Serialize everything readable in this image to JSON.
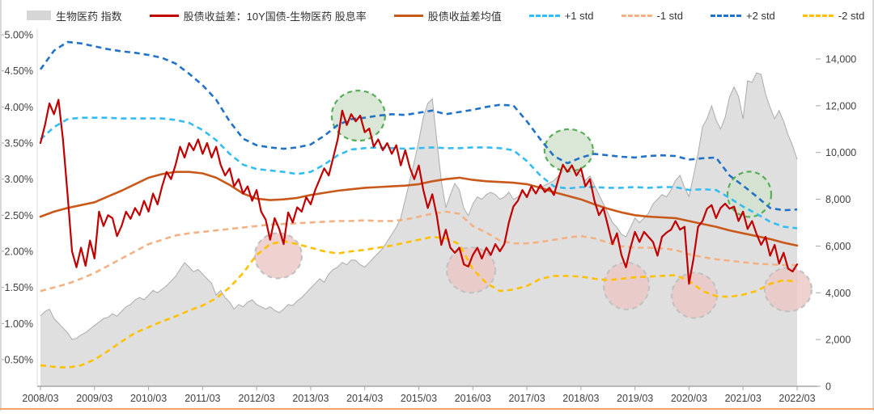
{
  "legend": {
    "items": [
      {
        "id": "index",
        "label": "生物医药 指数",
        "swatch": "area",
        "color": "#d6d6d6"
      },
      {
        "id": "spread",
        "label": "股债收益差：10Y国债-生物医药 股息率",
        "swatch": "line",
        "color": "#c00000"
      },
      {
        "id": "mean",
        "label": "股债收益差均值",
        "swatch": "line",
        "color": "#c9591b"
      },
      {
        "id": "p1std",
        "label": "+1 std",
        "swatch": "dash",
        "color": "#33bdf2"
      },
      {
        "id": "m1std",
        "label": "-1 std",
        "swatch": "dash",
        "color": "#f4b183"
      },
      {
        "id": "p2std",
        "label": "+2 std",
        "swatch": "dash",
        "color": "#2272c8"
      },
      {
        "id": "m2std",
        "label": "-2 std",
        "swatch": "dash",
        "color": "#ffc000"
      }
    ]
  },
  "chart_data": {
    "type": "combo",
    "months": 169,
    "x_start": "2008/03",
    "x_end": "2022/03",
    "x_tick_labels": [
      "2008/03",
      "2009/03",
      "2010/03",
      "2011/03",
      "2012/03",
      "2013/03",
      "2014/03",
      "2015/03",
      "2016/03",
      "2017/03",
      "2018/03",
      "2019/03",
      "2020/03",
      "2021/03",
      "2022/03"
    ],
    "y_left": {
      "tick_labels": [
        "5.00%",
        "4.50%",
        "4.00%",
        "3.50%",
        "3.00%",
        "2.50%",
        "2.00%",
        "1.50%",
        "1.00%",
        "0.50%"
      ],
      "tick_values": [
        5.0,
        4.5,
        4.0,
        3.5,
        3.0,
        2.5,
        2.0,
        1.5,
        1.0,
        0.5
      ],
      "min": 0.5,
      "max": 5.0
    },
    "y_right": {
      "tick_labels": [
        "14,000",
        "12,000",
        "10,000",
        "8,000",
        "6,000",
        "4,000",
        "2,000",
        "0"
      ],
      "tick_values": [
        14000,
        12000,
        10000,
        8000,
        6000,
        4000,
        2000,
        0
      ],
      "min": 0,
      "max": 14000
    },
    "series": [
      {
        "id": "index_area",
        "name": "生物医药 指数",
        "type": "area",
        "axis": "right",
        "step": 1,
        "fill": "#dcdcdc",
        "stroke": "#ababab",
        "values": [
          3000,
          3200,
          3300,
          2900,
          2700,
          2500,
          2300,
          2000,
          2050,
          2200,
          2300,
          2450,
          2600,
          2750,
          2900,
          2950,
          3100,
          3000,
          3200,
          3400,
          3500,
          3700,
          3800,
          3700,
          3900,
          4100,
          4000,
          4150,
          4300,
          4500,
          4700,
          5000,
          5290,
          5100,
          4900,
          5000,
          4800,
          4600,
          4400,
          3900,
          4100,
          3800,
          3600,
          3300,
          3500,
          3400,
          3600,
          3700,
          3500,
          3400,
          3300,
          3400,
          3250,
          3150,
          3300,
          3500,
          3450,
          3650,
          3800,
          4000,
          4200,
          4400,
          4600,
          4450,
          4800,
          5000,
          5100,
          5300,
          5200,
          5400,
          5390,
          5200,
          5100,
          5300,
          5500,
          5700,
          5900,
          6200,
          6500,
          6800,
          7200,
          8000,
          8800,
          9600,
          10500,
          11500,
          12100,
          12300,
          10500,
          8800,
          7640,
          8200,
          8680,
          8400,
          7600,
          7300,
          7800,
          8100,
          8000,
          8200,
          8300,
          8200,
          8000,
          8100,
          8300,
          8000,
          8100,
          8300,
          8200,
          8400,
          8300,
          8500,
          8600,
          8700,
          8800,
          9000,
          9200,
          9400,
          9540,
          9200,
          9000,
          8800,
          9000,
          8600,
          8200,
          7800,
          7400,
          7000,
          6800,
          6500,
          6400,
          6800,
          7200,
          7000,
          7190,
          7400,
          7800,
          8000,
          8200,
          8100,
          8400,
          8800,
          9020,
          8500,
          8120,
          9000,
          9960,
          11100,
          11450,
          12000,
          11400,
          11000,
          11500,
          12380,
          12800,
          12400,
          11440,
          13070,
          13000,
          13410,
          13340,
          12500,
          11930,
          11440,
          11790,
          11340,
          10750,
          10300,
          9700
        ]
      },
      {
        "id": "m2std",
        "name": "-2 std",
        "type": "line",
        "dashed": true,
        "axis": "left",
        "step": 3,
        "color": "#ffc000",
        "values": [
          0.42,
          0.4,
          0.39,
          0.42,
          0.5,
          0.62,
          0.75,
          0.87,
          0.95,
          1.03,
          1.1,
          1.18,
          1.25,
          1.35,
          1.5,
          1.7,
          1.95,
          2.1,
          2.14,
          2.1,
          2.05,
          2.0,
          1.97,
          2.0,
          2.02,
          2.05,
          2.08,
          2.12,
          2.16,
          2.2,
          2.18,
          2.1,
          1.75,
          1.56,
          1.45,
          1.47,
          1.52,
          1.62,
          1.66,
          1.66,
          1.65,
          1.62,
          1.6,
          1.62,
          1.64,
          1.65,
          1.66,
          1.67,
          1.59,
          1.45,
          1.38,
          1.37,
          1.4,
          1.45,
          1.55,
          1.6,
          1.58
        ]
      },
      {
        "id": "m1std",
        "name": "-1 std",
        "type": "line",
        "dashed": true,
        "axis": "left",
        "step": 3,
        "color": "#f4b183",
        "values": [
          1.45,
          1.5,
          1.55,
          1.62,
          1.7,
          1.8,
          1.9,
          2.0,
          2.1,
          2.16,
          2.22,
          2.25,
          2.27,
          2.29,
          2.31,
          2.33,
          2.35,
          2.37,
          2.38,
          2.39,
          2.4,
          2.41,
          2.42,
          2.42,
          2.43,
          2.42,
          2.42,
          2.44,
          2.48,
          2.52,
          2.55,
          2.52,
          2.35,
          2.26,
          2.15,
          2.11,
          2.11,
          2.13,
          2.16,
          2.19,
          2.21,
          2.18,
          2.12,
          2.07,
          2.05,
          2.05,
          2.04,
          2.02,
          1.96,
          1.92,
          1.89,
          1.87,
          1.85,
          1.83,
          1.82,
          1.81,
          1.81
        ]
      },
      {
        "id": "p1std",
        "name": "+1 std",
        "type": "line",
        "dashed": true,
        "axis": "left",
        "step": 3,
        "color": "#33bdf2",
        "values": [
          3.55,
          3.72,
          3.83,
          3.85,
          3.85,
          3.85,
          3.84,
          3.84,
          3.84,
          3.84,
          3.82,
          3.78,
          3.68,
          3.54,
          3.35,
          3.2,
          3.14,
          3.12,
          3.1,
          3.07,
          3.1,
          3.2,
          3.33,
          3.41,
          3.43,
          3.44,
          3.43,
          3.42,
          3.43,
          3.44,
          3.43,
          3.43,
          3.44,
          3.44,
          3.43,
          3.4,
          3.25,
          3.05,
          2.9,
          2.87,
          2.89,
          2.89,
          2.88,
          2.88,
          2.89,
          2.88,
          2.89,
          2.89,
          2.85,
          2.86,
          2.85,
          2.74,
          2.62,
          2.52,
          2.41,
          2.34,
          2.32
        ]
      },
      {
        "id": "p2std",
        "name": "+2 std",
        "type": "line",
        "dashed": true,
        "axis": "left",
        "step": 3,
        "color": "#2272c8",
        "values": [
          4.52,
          4.78,
          4.9,
          4.88,
          4.84,
          4.8,
          4.77,
          4.75,
          4.72,
          4.68,
          4.6,
          4.46,
          4.3,
          4.1,
          3.8,
          3.56,
          3.47,
          3.44,
          3.42,
          3.44,
          3.48,
          3.6,
          3.75,
          3.83,
          3.85,
          3.88,
          3.9,
          3.89,
          3.92,
          3.95,
          3.9,
          3.93,
          3.96,
          4.0,
          4.03,
          4.02,
          3.8,
          3.55,
          3.32,
          3.22,
          3.3,
          3.35,
          3.33,
          3.31,
          3.3,
          3.32,
          3.33,
          3.32,
          3.27,
          3.29,
          3.3,
          3.05,
          2.91,
          2.76,
          2.6,
          2.57,
          2.58
        ]
      },
      {
        "id": "mean",
        "name": "股债收益差均值",
        "type": "line",
        "dashed": false,
        "axis": "left",
        "step": 3,
        "color": "#c9591b",
        "values": [
          2.48,
          2.55,
          2.6,
          2.64,
          2.68,
          2.76,
          2.84,
          2.93,
          3.02,
          3.07,
          3.1,
          3.1,
          3.08,
          3.02,
          2.92,
          2.8,
          2.73,
          2.71,
          2.72,
          2.74,
          2.78,
          2.81,
          2.84,
          2.86,
          2.88,
          2.89,
          2.9,
          2.91,
          2.93,
          2.97,
          3.0,
          3.02,
          2.99,
          2.97,
          2.96,
          2.95,
          2.93,
          2.88,
          2.82,
          2.77,
          2.72,
          2.65,
          2.59,
          2.54,
          2.5,
          2.48,
          2.47,
          2.46,
          2.42,
          2.38,
          2.34,
          2.29,
          2.25,
          2.21,
          2.17,
          2.12,
          2.08
        ]
      },
      {
        "id": "spread",
        "name": "股债收益差：10Y国债-生物医药 股息率",
        "type": "line",
        "dashed": false,
        "axis": "left",
        "step": 1,
        "color": "#c00000",
        "values": [
          3.5,
          3.75,
          4.05,
          3.9,
          4.1,
          3.55,
          2.8,
          2.0,
          1.78,
          2.05,
          1.8,
          2.15,
          1.9,
          2.55,
          2.35,
          2.5,
          2.46,
          2.21,
          2.35,
          2.55,
          2.45,
          2.6,
          2.5,
          2.7,
          2.55,
          2.8,
          2.65,
          2.9,
          3.1,
          3.0,
          3.2,
          3.45,
          3.3,
          3.5,
          3.4,
          3.55,
          3.35,
          3.5,
          3.3,
          3.45,
          3.2,
          3.05,
          3.15,
          2.9,
          3.0,
          2.8,
          2.9,
          2.7,
          2.85,
          2.55,
          2.44,
          2.16,
          2.46,
          2.31,
          2.1,
          2.54,
          2.4,
          2.61,
          2.55,
          2.75,
          2.65,
          2.85,
          3.0,
          3.15,
          3.05,
          3.3,
          3.55,
          3.95,
          3.75,
          3.9,
          3.8,
          3.88,
          3.65,
          3.7,
          3.45,
          3.55,
          3.4,
          3.5,
          3.35,
          3.47,
          3.19,
          3.4,
          3.16,
          3.0,
          3.19,
          2.85,
          2.6,
          2.79,
          2.49,
          2.09,
          2.3,
          2.05,
          1.98,
          2.05,
          1.82,
          1.79,
          1.95,
          2.05,
          1.9,
          2.05,
          1.95,
          2.1,
          2.0,
          2.1,
          2.4,
          2.62,
          2.7,
          2.85,
          2.75,
          2.9,
          2.8,
          2.92,
          2.82,
          2.88,
          2.78,
          3.0,
          3.2,
          3.1,
          3.19,
          3.05,
          3.15,
          2.9,
          3.0,
          2.7,
          2.5,
          2.6,
          2.35,
          2.1,
          2.25,
          1.95,
          1.78,
          2.05,
          2.27,
          2.13,
          2.27,
          2.2,
          2.13,
          1.94,
          2.2,
          2.26,
          2.3,
          2.42,
          2.3,
          2.34,
          1.55,
          1.9,
          2.34,
          2.42,
          2.59,
          2.64,
          2.46,
          2.6,
          2.66,
          2.59,
          2.62,
          2.42,
          2.55,
          2.31,
          2.42,
          2.24,
          2.09,
          2.2,
          1.94,
          2.09,
          1.83,
          1.98,
          1.76,
          1.72,
          1.82
        ]
      }
    ],
    "annotations": [
      {
        "kind": "green",
        "month": 70.6,
        "value": 3.88,
        "rx": 33,
        "ry": 31
      },
      {
        "kind": "green",
        "month": 117.3,
        "value": 3.4,
        "rx": 30,
        "ry": 26
      },
      {
        "kind": "green",
        "month": 157.4,
        "value": 2.79,
        "rx": 27,
        "ry": 28
      },
      {
        "kind": "pink",
        "month": 52.8,
        "value": 1.94,
        "rx": 29,
        "ry": 28
      },
      {
        "kind": "pink",
        "month": 95.6,
        "value": 1.74,
        "rx": 30,
        "ry": 28
      },
      {
        "kind": "pink",
        "month": 130.1,
        "value": 1.52,
        "rx": 28,
        "ry": 29
      },
      {
        "kind": "pink",
        "month": 145.2,
        "value": 1.39,
        "rx": 28,
        "ry": 28
      },
      {
        "kind": "pink",
        "month": 166.0,
        "value": 1.47,
        "rx": 29,
        "ry": 27
      }
    ],
    "annotation_styles": {
      "green": {
        "fill": "#d3e2cf",
        "fill_opacity": 0.85,
        "stroke": "#57ae57"
      },
      "pink": {
        "fill": "#ebc6c4",
        "fill_opacity": 0.8,
        "stroke": "#c2c2c2"
      }
    }
  }
}
